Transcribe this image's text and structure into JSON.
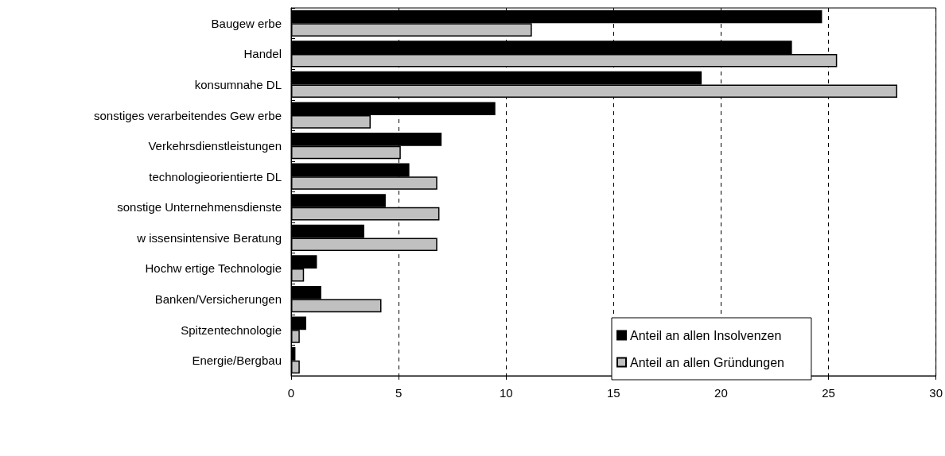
{
  "chart_data": {
    "type": "bar",
    "orientation": "horizontal",
    "categories": [
      "Baugew erbe",
      "Handel",
      "konsumnahe DL",
      "sonstiges verarbeitendes Gew erbe",
      "Verkehrsdienstleistungen",
      "technologieorientierte DL",
      "sonstige Unternehmensdienste",
      "w issensintensive Beratung",
      "Hochw ertige Technologie",
      "Banken/Versicherungen",
      "Spitzentechnologie",
      "Energie/Bergbau"
    ],
    "series": [
      {
        "name": "Anteil an allen Insolvenzen",
        "color": "#000000",
        "values": [
          24.7,
          23.3,
          19.1,
          9.5,
          7.0,
          5.5,
          4.4,
          3.4,
          1.2,
          1.4,
          0.7,
          0.2
        ]
      },
      {
        "name": "Anteil an allen Gründungen",
        "color": "#c0c0c0",
        "values": [
          11.2,
          25.4,
          28.2,
          3.7,
          5.1,
          6.8,
          6.9,
          6.8,
          0.6,
          4.2,
          0.4,
          0.4
        ]
      }
    ],
    "xlim": [
      0,
      30
    ],
    "xticks": [
      0,
      5,
      10,
      15,
      20,
      25,
      30
    ],
    "grid": "x",
    "legend": "bottom right"
  }
}
